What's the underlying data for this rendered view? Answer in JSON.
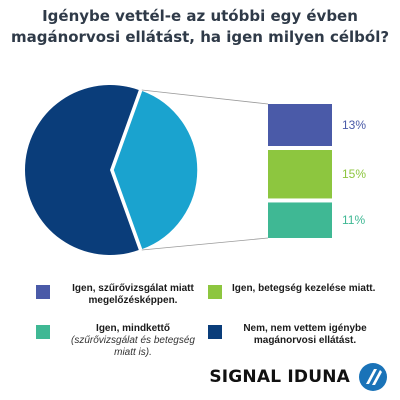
{
  "title": {
    "line1": "Igénybe vettél-e az utóbbi egy évben",
    "line2": "magánorvosi ellátást, ha igen milyen célból?"
  },
  "chart_data": {
    "type": "pie",
    "slices": [
      {
        "name": "Igen, szűrővizsgálat miatt megelőzésképpen.",
        "value": 13,
        "color": "#4a5aa8"
      },
      {
        "name": "Igen, betegség kezelése miatt.",
        "value": 15,
        "color": "#8dc63f"
      },
      {
        "name": "Igen, mindkettő (szűrővizsgálat és betegség miatt is).",
        "value": 11,
        "color": "#3fb894"
      },
      {
        "name": "Nem, nem vettem igénybe magánorvosi ellátást.",
        "value": 61,
        "color": "#0a3d7a"
      }
    ],
    "exploded_group_color": "#1aa3cf",
    "breakdown_bars": [
      {
        "label": "13%",
        "value": 13,
        "color": "#4a5aa8"
      },
      {
        "label": "15%",
        "value": 15,
        "color": "#8dc63f"
      },
      {
        "label": "11%",
        "value": 11,
        "color": "#3fb894"
      }
    ],
    "legend_placement": "bottom"
  },
  "legend": [
    {
      "label": "Igen, szűrővizsgálat miatt megelőzésképpen.",
      "sub": "",
      "color": "#4a5aa8"
    },
    {
      "label": "Igen, betegség kezelése miatt.",
      "sub": "",
      "color": "#8dc63f"
    },
    {
      "label": "Igen, mindkettő",
      "sub": "(szűrővizsgálat és betegség miatt is).",
      "color": "#3fb894"
    },
    {
      "label": "Nem, nem vettem igénybe magánorvosi ellátást.",
      "sub": "",
      "color": "#0a3d7a"
    }
  ],
  "brand": {
    "name": "SIGNAL IDUNA",
    "logo_icon": "signal-iduna-logo-icon"
  }
}
